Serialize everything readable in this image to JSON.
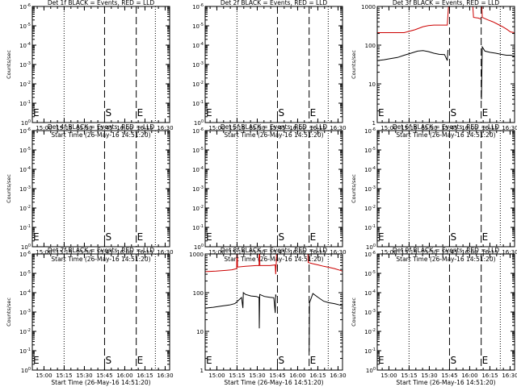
{
  "chart_data": [
    {
      "type": "line",
      "title": "Det 1f BLACK = Events, RED = LLD",
      "xlabel": "Start Time (26-May-16 14:51:20)",
      "ylabel": "Counts/sec",
      "ytick_labels": [
        "10^0",
        "10^-1",
        "10^-2",
        "10^-3",
        "10^-4",
        "10^-5",
        "10^-6"
      ],
      "ylim": [
        1e-06,
        1
      ],
      "yscale": "log",
      "xtick_labels": [
        "15:00",
        "15:15",
        "15:30",
        "15:45",
        "16:00",
        "16:15",
        "16:30"
      ],
      "x_minutes": [
        8.67,
        23.67,
        38.67,
        53.67,
        68.67,
        83.67,
        98.67
      ],
      "x_range_minutes": [
        0,
        102
      ],
      "dotted_line_minutes": [
        23.6,
        91.4
      ],
      "dashed_lines": [
        {
          "minute": 53.67,
          "label": "S"
        },
        {
          "minute": 77.2,
          "label": "E"
        }
      ],
      "start_label": "E",
      "series": []
    },
    {
      "type": "line",
      "title": "Det 2f BLACK = Events, RED = LLD",
      "xlabel": "Start Time (26-May-16 14:51:20)",
      "ylabel": "",
      "ytick_labels": [
        "10^0",
        "10^-1",
        "10^-2",
        "10^-3",
        "10^-4",
        "10^-5",
        "10^-6"
      ],
      "ylim": [
        1e-06,
        1
      ],
      "yscale": "log",
      "xtick_labels": [
        "15:00",
        "15:15",
        "15:30",
        "15:45",
        "16:00",
        "16:15",
        "16:30"
      ],
      "x_minutes": [
        8.67,
        23.67,
        38.67,
        53.67,
        68.67,
        83.67,
        98.67
      ],
      "x_range_minutes": [
        0,
        102
      ],
      "dotted_line_minutes": [
        23.6,
        91.4
      ],
      "dashed_lines": [
        {
          "minute": 53.67,
          "label": "S"
        },
        {
          "minute": 77.2,
          "label": "E"
        }
      ],
      "start_label": "E",
      "series": []
    },
    {
      "type": "line",
      "title": "Det 3f BLACK = Events, RED = LLD",
      "xlabel": "Start Time (26-May-16 14:51:20)",
      "ylabel": "Counts/sec",
      "ytick_labels": [
        "1",
        "10",
        "100",
        "1000"
      ],
      "ylim": [
        1,
        1000
      ],
      "yscale": "log",
      "xtick_labels": [
        "15:00",
        "15:15",
        "15:30",
        "15:45",
        "16:00",
        "16:15",
        "16:30"
      ],
      "x_minutes": [
        8.67,
        23.67,
        38.67,
        53.67,
        68.67,
        83.67,
        98.67
      ],
      "x_range_minutes": [
        0,
        102
      ],
      "dotted_line_minutes": [
        23.6,
        91.4
      ],
      "dashed_lines": [
        {
          "minute": 53.67,
          "label": "S"
        },
        {
          "minute": 77.2,
          "label": "E"
        }
      ],
      "start_label": "E",
      "series": [
        {
          "color": "#cc0000",
          "segments": [
            [
              [
                0,
                210
              ],
              [
                10,
                210
              ],
              [
                20,
                210
              ],
              [
                28,
                250
              ],
              [
                34,
                300
              ],
              [
                38,
                320
              ],
              [
                42,
                330
              ],
              [
                46,
                330
              ],
              [
                50,
                330
              ],
              [
                52,
                330
              ],
              [
                52.5,
                600
              ],
              [
                53.5,
                2000
              ]
            ],
            [
              [
                70,
                2000
              ],
              [
                71,
                1000
              ],
              [
                71.5,
                520
              ],
              [
                75,
                500
              ],
              [
                77.2,
                470
              ]
            ],
            [
              [
                77.4,
                2000
              ],
              [
                78,
                520
              ],
              [
                82,
                450
              ],
              [
                86,
                400
              ],
              [
                90,
                340
              ],
              [
                93,
                300
              ],
              [
                96,
                260
              ],
              [
                99,
                220
              ],
              [
                102,
                210
              ]
            ]
          ]
        },
        {
          "color": "#000000",
          "segments": [
            [
              [
                0,
                40
              ],
              [
                5,
                42
              ],
              [
                10,
                45
              ],
              [
                15,
                48
              ],
              [
                20,
                55
              ],
              [
                25,
                62
              ],
              [
                30,
                70
              ],
              [
                34,
                72
              ],
              [
                38,
                68
              ],
              [
                42,
                62
              ],
              [
                46,
                58
              ],
              [
                50,
                57
              ],
              [
                52,
                40
              ],
              [
                52.5,
                75
              ]
            ],
            [
              [
                77.4,
                4
              ],
              [
                78,
                90
              ],
              [
                80,
                70
              ],
              [
                84,
                65
              ],
              [
                88,
                62
              ],
              [
                92,
                58
              ],
              [
                96,
                55
              ],
              [
                99,
                55
              ],
              [
                102,
                52
              ]
            ]
          ]
        }
      ]
    },
    {
      "type": "line",
      "title": "Det 4f BLACK = Events, RED = LLD",
      "xlabel": "Start Time (26-May-16 14:51:20)",
      "ylabel": "Counts/sec",
      "ytick_labels": [
        "10^0",
        "10^-1",
        "10^-2",
        "10^-3",
        "10^-4",
        "10^-5",
        "10^-6"
      ],
      "ylim": [
        1e-06,
        1
      ],
      "yscale": "log",
      "xtick_labels": [
        "15:00",
        "15:15",
        "15:30",
        "15:45",
        "16:00",
        "16:15",
        "16:30"
      ],
      "x_minutes": [
        8.67,
        23.67,
        38.67,
        53.67,
        68.67,
        83.67,
        98.67
      ],
      "x_range_minutes": [
        0,
        102
      ],
      "dotted_line_minutes": [
        23.6,
        91.4
      ],
      "dashed_lines": [
        {
          "minute": 53.67,
          "label": "S"
        },
        {
          "minute": 77.2,
          "label": "E"
        }
      ],
      "start_label": "E",
      "series": []
    },
    {
      "type": "line",
      "title": "Det 5f BLACK = Events, RED = LLD",
      "xlabel": "Start Time (26-May-16 14:51:20)",
      "ylabel": "",
      "ytick_labels": [
        "10^0",
        "10^-1",
        "10^-2",
        "10^-3",
        "10^-4",
        "10^-5",
        "10^-6"
      ],
      "ylim": [
        1e-06,
        1
      ],
      "yscale": "log",
      "xtick_labels": [
        "15:00",
        "15:15",
        "15:30",
        "15:45",
        "16:00",
        "16:15",
        "16:30"
      ],
      "x_minutes": [
        8.67,
        23.67,
        38.67,
        53.67,
        68.67,
        83.67,
        98.67
      ],
      "x_range_minutes": [
        0,
        102
      ],
      "dotted_line_minutes": [
        23.6,
        91.4
      ],
      "dashed_lines": [
        {
          "minute": 53.67,
          "label": "S"
        },
        {
          "minute": 77.2,
          "label": "E"
        }
      ],
      "start_label": "E",
      "series": []
    },
    {
      "type": "line",
      "title": "Det 6f BLACK = Events, RED = LLD",
      "xlabel": "Start Time (26-May-16 14:51:20)",
      "ylabel": "Counts/sec",
      "ytick_labels": [
        "10^0",
        "10^-1",
        "10^-2",
        "10^-3",
        "10^-4",
        "10^-5",
        "10^-6"
      ],
      "ylim": [
        1e-06,
        1
      ],
      "yscale": "log",
      "xtick_labels": [
        "15:00",
        "15:15",
        "15:30",
        "15:45",
        "16:00",
        "16:15",
        "16:30"
      ],
      "x_minutes": [
        8.67,
        23.67,
        38.67,
        53.67,
        68.67,
        83.67,
        98.67
      ],
      "x_range_minutes": [
        0,
        102
      ],
      "dotted_line_minutes": [
        23.6,
        91.4
      ],
      "dashed_lines": [
        {
          "minute": 53.67,
          "label": "S"
        },
        {
          "minute": 77.2,
          "label": "E"
        }
      ],
      "start_label": "E",
      "series": []
    },
    {
      "type": "line",
      "title": "Det 7f BLACK = Events, RED = LLD",
      "xlabel": "Start Time (26-May-16 14:51:20)",
      "ylabel": "Counts/sec",
      "ytick_labels": [
        "10^0",
        "10^-1",
        "10^-2",
        "10^-3",
        "10^-4",
        "10^-5",
        "10^-6"
      ],
      "ylim": [
        1e-06,
        1
      ],
      "yscale": "log",
      "xtick_labels": [
        "15:00",
        "15:15",
        "15:30",
        "15:45",
        "16:00",
        "16:15",
        "16:30"
      ],
      "x_minutes": [
        8.67,
        23.67,
        38.67,
        53.67,
        68.67,
        83.67,
        98.67
      ],
      "x_range_minutes": [
        0,
        102
      ],
      "dotted_line_minutes": [
        23.6,
        91.4
      ],
      "dashed_lines": [
        {
          "minute": 53.67,
          "label": "S"
        },
        {
          "minute": 77.2,
          "label": "E"
        }
      ],
      "start_label": "E",
      "series": []
    },
    {
      "type": "line",
      "title": "Det 8f BLACK = Events, RED = LLD",
      "xlabel": "Start Time (26-May-16 14:51:20)",
      "ylabel": "",
      "ytick_labels": [
        "1",
        "10",
        "100",
        "1000"
      ],
      "ylim": [
        1,
        1000
      ],
      "yscale": "log",
      "xtick_labels": [
        "15:00",
        "15:15",
        "15:30",
        "15:45",
        "16:00",
        "16:15",
        "16:30"
      ],
      "x_minutes": [
        8.67,
        23.67,
        38.67,
        53.67,
        68.67,
        83.67,
        98.67
      ],
      "x_range_minutes": [
        0,
        102
      ],
      "dotted_line_minutes": [
        23.6,
        91.4
      ],
      "dashed_lines": [
        {
          "minute": 53.67,
          "label": "S"
        },
        {
          "minute": 77.2,
          "label": "E"
        }
      ],
      "start_label": "E",
      "series": [
        {
          "color": "#cc0000",
          "segments": [
            [
              [
                0,
                350
              ],
              [
                8,
                360
              ],
              [
                16,
                380
              ],
              [
                20,
                390
              ],
              [
                23.4,
                420
              ],
              [
                23.6,
                2000
              ]
            ],
            [
              [
                23.8,
                2000
              ],
              [
                24,
                460
              ],
              [
                30,
                480
              ],
              [
                38,
                500
              ],
              [
                40,
                500
              ],
              [
                40.2,
                2000
              ]
            ],
            [
              [
                40.4,
                2000
              ],
              [
                40.6,
                500
              ],
              [
                48,
                500
              ],
              [
                52,
                520
              ],
              [
                52.4,
                300
              ],
              [
                52.8,
                600
              ],
              [
                53.2,
                2000
              ]
            ],
            [
              [
                76,
                2000
              ],
              [
                76.5,
                600
              ],
              [
                80,
                560
              ],
              [
                84,
                520
              ],
              [
                88,
                480
              ],
              [
                92,
                450
              ],
              [
                96,
                420
              ],
              [
                100,
                380
              ],
              [
                102,
                360
              ]
            ]
          ]
        },
        {
          "color": "#000000",
          "segments": [
            [
              [
                0,
                40
              ],
              [
                6,
                42
              ],
              [
                12,
                45
              ],
              [
                18,
                48
              ],
              [
                22,
                52
              ],
              [
                24,
                60
              ],
              [
                27,
                75
              ],
              [
                28,
                40
              ],
              [
                28.3,
                100
              ],
              [
                30,
                90
              ],
              [
                34,
                82
              ],
              [
                38,
                80
              ],
              [
                40,
                75
              ],
              [
                40.2,
                12
              ],
              [
                40.5,
                90
              ],
              [
                44,
                80
              ],
              [
                48,
                76
              ],
              [
                51,
                74
              ],
              [
                52,
                30
              ],
              [
                52.4,
                90
              ],
              [
                52.7,
                80
              ]
            ],
            [
              [
                77.2,
                3
              ],
              [
                77.5,
                55
              ],
              [
                80,
                95
              ],
              [
                84,
                75
              ],
              [
                88,
                60
              ],
              [
                92,
                55
              ],
              [
                96,
                52
              ],
              [
                100,
                48
              ],
              [
                102,
                45
              ]
            ]
          ]
        }
      ]
    },
    {
      "type": "line",
      "title": "Det 9f BLACK = Events, RED = LLD",
      "xlabel": "Start Time (26-May-16 14:51:20)",
      "ylabel": "Counts/sec",
      "ytick_labels": [
        "10^0",
        "10^-1",
        "10^-2",
        "10^-3",
        "10^-4",
        "10^-5",
        "10^-6"
      ],
      "ylim": [
        1e-06,
        1
      ],
      "yscale": "log",
      "xtick_labels": [
        "15:00",
        "15:15",
        "15:30",
        "15:45",
        "16:00",
        "16:15",
        "16:30"
      ],
      "x_minutes": [
        8.67,
        23.67,
        38.67,
        53.67,
        68.67,
        83.67,
        98.67
      ],
      "x_range_minutes": [
        0,
        102
      ],
      "dotted_line_minutes": [
        23.6,
        91.4
      ],
      "dashed_lines": [
        {
          "minute": 53.67,
          "label": "S"
        },
        {
          "minute": 77.2,
          "label": "E"
        }
      ],
      "start_label": "E",
      "series": []
    }
  ]
}
